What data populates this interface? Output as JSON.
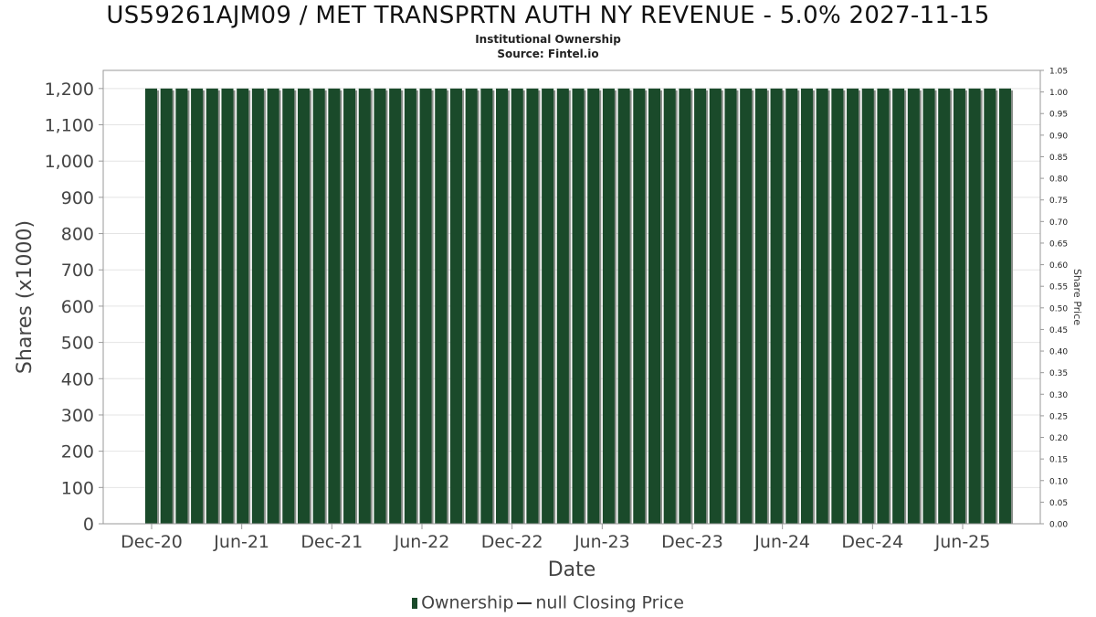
{
  "header": {
    "title": "US59261AJM09 / MET TRANSPRTN AUTH NY REVENUE - 5.0% 2027-11-15",
    "subtitle": "Institutional Ownership",
    "source": "Source: Fintel.io"
  },
  "legend": {
    "ownership": "Ownership",
    "price": "null Closing Price"
  },
  "colors": {
    "bar": "#1a4a2a",
    "bar_shadow": "#8a8f8a",
    "grid": "#e4e4e4",
    "axis_text": "#444444"
  },
  "chart_data": {
    "type": "bar",
    "xlabel": "Date",
    "ylabel": "Shares (x1000)",
    "y2label": "Share Price",
    "ylim": [
      0,
      1250
    ],
    "y2lim": [
      0,
      1.05
    ],
    "yticks": [
      "0",
      "100",
      "200",
      "300",
      "400",
      "500",
      "600",
      "700",
      "800",
      "900",
      "1,000",
      "1,100",
      "1,200"
    ],
    "y2ticks": [
      "0.00",
      "0.05",
      "0.10",
      "0.15",
      "0.20",
      "0.25",
      "0.30",
      "0.35",
      "0.40",
      "0.45",
      "0.50",
      "0.55",
      "0.60",
      "0.65",
      "0.70",
      "0.75",
      "0.80",
      "0.85",
      "0.90",
      "0.95",
      "1.00",
      "1.05"
    ],
    "xticks": [
      "Dec-20",
      "Jun-21",
      "Dec-21",
      "Jun-22",
      "Dec-22",
      "Jun-23",
      "Dec-23",
      "Jun-24",
      "Dec-24",
      "Jun-25"
    ],
    "grid": true,
    "legend_position": "bottom",
    "series": [
      {
        "name": "Ownership",
        "values": [
          1200,
          1200,
          1200,
          1200,
          1200,
          1200,
          1200,
          1200,
          1200,
          1200,
          1200,
          1200,
          1200,
          1200,
          1200,
          1200,
          1200,
          1200,
          1200,
          1200,
          1200,
          1200,
          1200,
          1200,
          1200,
          1200,
          1200,
          1200,
          1200,
          1200,
          1200,
          1200,
          1200,
          1200,
          1200,
          1200,
          1200,
          1200,
          1200,
          1200,
          1200,
          1200,
          1200,
          1200,
          1200,
          1200,
          1200,
          1200,
          1200,
          1200,
          1200,
          1200,
          1200,
          1200,
          1200,
          1200,
          1200
        ]
      }
    ]
  }
}
